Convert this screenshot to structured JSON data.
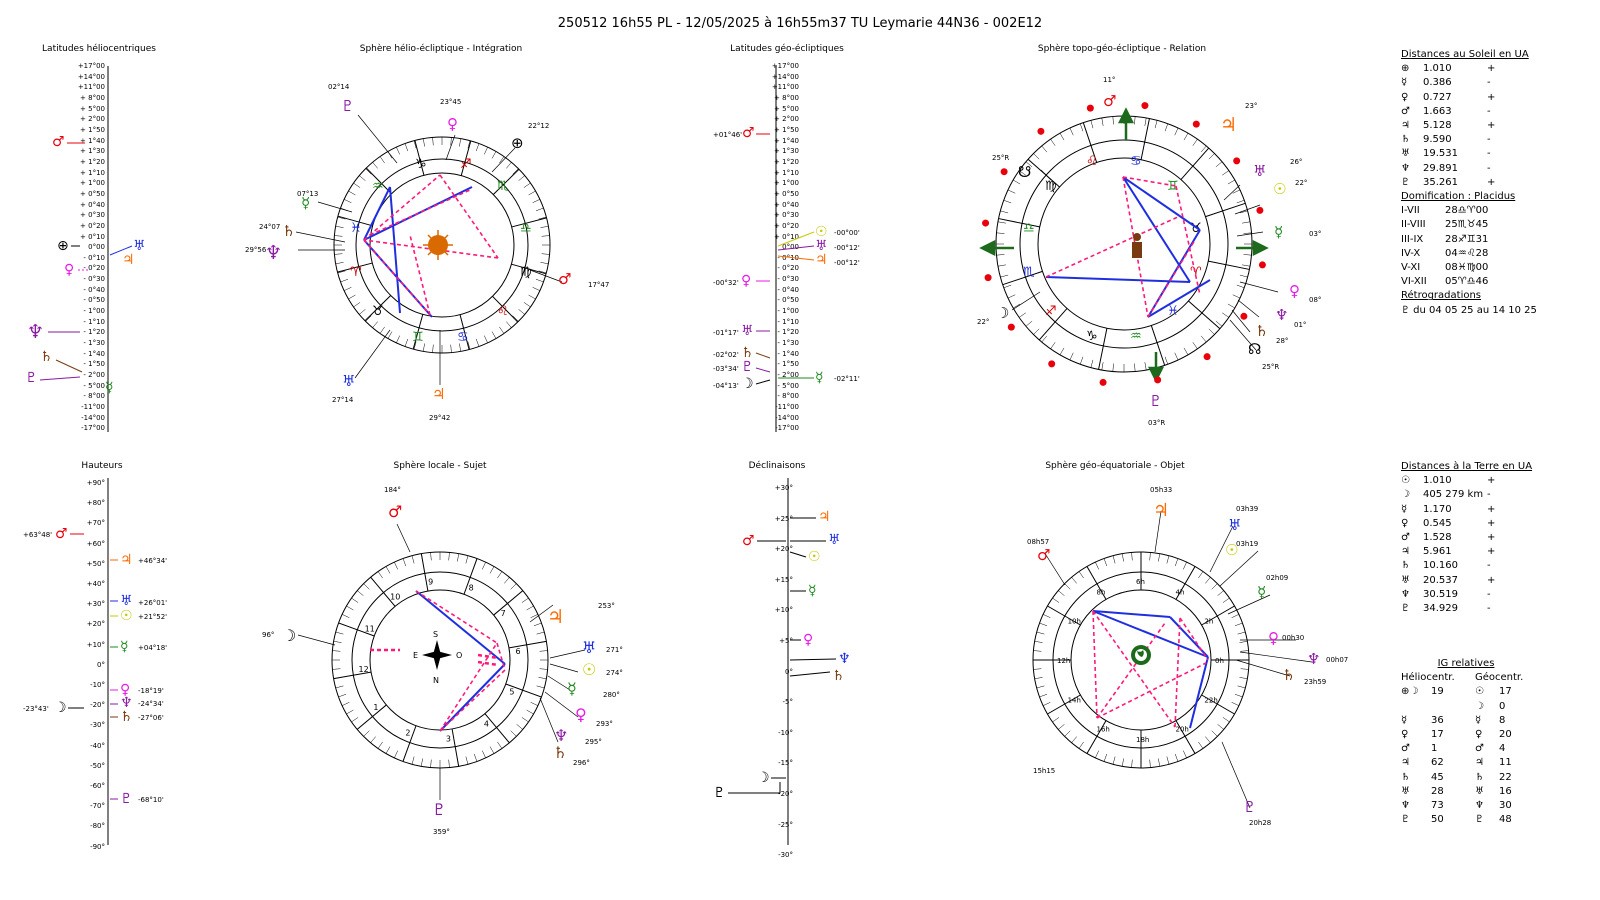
{
  "header": "250512 16h55 PL   -  12/05/2025 à 16h55m37 TU  Leymarie  44N36 - 002E12",
  "panels": {
    "lat_helio": "Latitudes héliocentriques",
    "sphere_helio": "Sphère hélio-écliptique - Intégration",
    "lat_geo": "Latitudes géo-écliptiques",
    "sphere_topo": "Sphère topo-géo-écliptique - Relation",
    "hauteurs": "Hauteurs",
    "sphere_locale": "Sphère locale - Sujet",
    "declinaisons": "Déclinaisons",
    "sphere_equa": "Sphère géo-équatoriale - Objet"
  },
  "lat_scale": [
    "+17°00",
    "+14°00",
    "+11°00",
    "+ 8°00",
    "+ 5°00",
    "+ 2°00",
    "+ 1°50",
    "+ 1°40",
    "+ 1°30",
    "+ 1°20",
    "+ 1°10",
    "+ 1°00",
    "+ 0°50",
    "+ 0°40",
    "+ 0°30",
    "+ 0°20",
    "+ 0°10",
    "0°00",
    "- 0°10",
    "- 0°20",
    "- 0°30",
    "- 0°40",
    "- 0°50",
    "- 1°00",
    "- 1°10",
    "- 1°20",
    "- 1°30",
    "- 1°40",
    "- 1°50",
    "- 2°00",
    "- 5°00",
    "- 8°00",
    "-11°00",
    "-14°00",
    "-17°00"
  ],
  "haut_scale": [
    "+90°",
    "+80°",
    "+70°",
    "+60°",
    "+50°",
    "+40°",
    "+30°",
    "+20°",
    "+10°",
    "0°",
    "-10°",
    "-20°",
    "-30°",
    "-40°",
    "-50°",
    "-60°",
    "-70°",
    "-80°",
    "-90°"
  ],
  "decl_scale": [
    "+30°",
    "+25°",
    "+20°",
    "+15°",
    "+10°",
    "+5°",
    "0°",
    "-5°",
    "-10°",
    "-15°",
    "-20°",
    "-25°",
    "-30°"
  ],
  "lat_geo_labels": [
    "+01°46'",
    "-00°00'",
    "-00°12'",
    "-00°12'",
    "-00°32'",
    "-01°17'",
    "-02°02'",
    "-03°34'",
    "-04°13'",
    "-02°11'"
  ],
  "haut_labels": [
    "+63°48'",
    "+46°34'",
    "+26°01'",
    "+21°52'",
    "+04°18'",
    "-18°19'",
    "-24°34'",
    "-27°06'",
    "-23°43'",
    "-68°10'"
  ],
  "helio_sphere_labels": [
    "02°14",
    "23°45",
    "22°12",
    "07°13",
    "24°07",
    "29°56",
    "17°47",
    "27°14",
    "29°42"
  ],
  "topo_labels": [
    "11°",
    "23°",
    "25°R",
    "26°",
    "22°",
    "03°",
    "22°",
    "08°",
    "01°",
    "28°",
    "25°R",
    "03°R"
  ],
  "locale_labels": [
    "184°",
    "253°",
    "96°",
    "271°",
    "274°",
    "280°",
    "293°",
    "295°",
    "296°",
    "359°"
  ],
  "locale_compass": {
    "n": "N",
    "s": "S",
    "e": "E",
    "o": "O"
  },
  "equa_labels": [
    "05h33",
    "03h39",
    "08h57",
    "03h19",
    "02h09",
    "00h30",
    "00h07",
    "23h59",
    "15h15",
    "20h28"
  ],
  "sun_distances": {
    "title": "Distances au Soleil en UA",
    "rows": [
      {
        "g": "⊕",
        "v": "1.010",
        "s": "+"
      },
      {
        "g": "☿",
        "v": "0.386",
        "s": "-"
      },
      {
        "g": "♀",
        "v": "0.727",
        "s": "+"
      },
      {
        "g": "♂",
        "v": "1.663",
        "s": "-"
      },
      {
        "g": "♃",
        "v": "5.128",
        "s": "+"
      },
      {
        "g": "♄",
        "v": "9.590",
        "s": "-"
      },
      {
        "g": "♅",
        "v": "19.531",
        "s": "-"
      },
      {
        "g": "♆",
        "v": "29.891",
        "s": "-"
      },
      {
        "g": "♇",
        "v": "35.261",
        "s": "+"
      }
    ]
  },
  "domification": {
    "title": "Domification : Placidus",
    "rows": [
      {
        "h": "I-VII",
        "v": "28♎♈00"
      },
      {
        "h": "II-VIII",
        "v": "25♏♉45"
      },
      {
        "h": "III-IX",
        "v": "28♐♊31"
      },
      {
        "h": "IV-X",
        "v": "04♒♌28"
      },
      {
        "h": "V-XI",
        "v": "08♓♍00"
      },
      {
        "h": "VI-XII",
        "v": "05♈♎46"
      }
    ]
  },
  "retro": {
    "title": "Rétrogradations",
    "row": "♇   du 04 05 25 au 14 10 25"
  },
  "earth_distances": {
    "title": "Distances à la Terre en UA",
    "rows": [
      {
        "g": "☉",
        "v": "1.010",
        "s": "+"
      },
      {
        "g": "☽",
        "v": "405 279 km",
        "s": "-"
      },
      {
        "g": "☿",
        "v": "1.170",
        "s": "+"
      },
      {
        "g": "♀",
        "v": "0.545",
        "s": "+"
      },
      {
        "g": "♂",
        "v": "1.528",
        "s": "+"
      },
      {
        "g": "♃",
        "v": "5.961",
        "s": "+"
      },
      {
        "g": "♄",
        "v": "10.160",
        "s": "-"
      },
      {
        "g": "♅",
        "v": "20.537",
        "s": "+"
      },
      {
        "g": "♆",
        "v": "30.519",
        "s": "-"
      },
      {
        "g": "♇",
        "v": "34.929",
        "s": "-"
      }
    ]
  },
  "ig": {
    "title": "IG relatives",
    "col1": "Héliocentr.",
    "col2": "Géocentr.",
    "rows": [
      {
        "g1": "⊕☽",
        "v1": "19",
        "g2": "☉",
        "v2": "17"
      },
      {
        "g1": "",
        "v1": "",
        "g2": "☽",
        "v2": "0"
      },
      {
        "g1": "☿",
        "v1": "36",
        "g2": "☿",
        "v2": "8"
      },
      {
        "g1": "♀",
        "v1": "17",
        "g2": "♀",
        "v2": "20"
      },
      {
        "g1": "♂",
        "v1": "1",
        "g2": "♂",
        "v2": "4"
      },
      {
        "g1": "♃",
        "v1": "62",
        "g2": "♃",
        "v2": "11"
      },
      {
        "g1": "♄",
        "v1": "45",
        "g2": "♄",
        "v2": "22"
      },
      {
        "g1": "♅",
        "v1": "28",
        "g2": "♅",
        "v2": "16"
      },
      {
        "g1": "♆",
        "v1": "73",
        "g2": "♆",
        "v2": "30"
      },
      {
        "g1": "♇",
        "v1": "50",
        "g2": "♇",
        "v2": "48"
      }
    ]
  },
  "colors": {
    "blue": "#1f2fe0",
    "pink": "#ff1a7a",
    "red": "#e8000b",
    "orange": "#ff6a00",
    "green": "#1d8a1d",
    "purple": "#8a1aa3",
    "magenta": "#e81ae8",
    "brown": "#7a3a10",
    "yellow": "#c8c800",
    "darkgreen": "#1d6a1d"
  }
}
